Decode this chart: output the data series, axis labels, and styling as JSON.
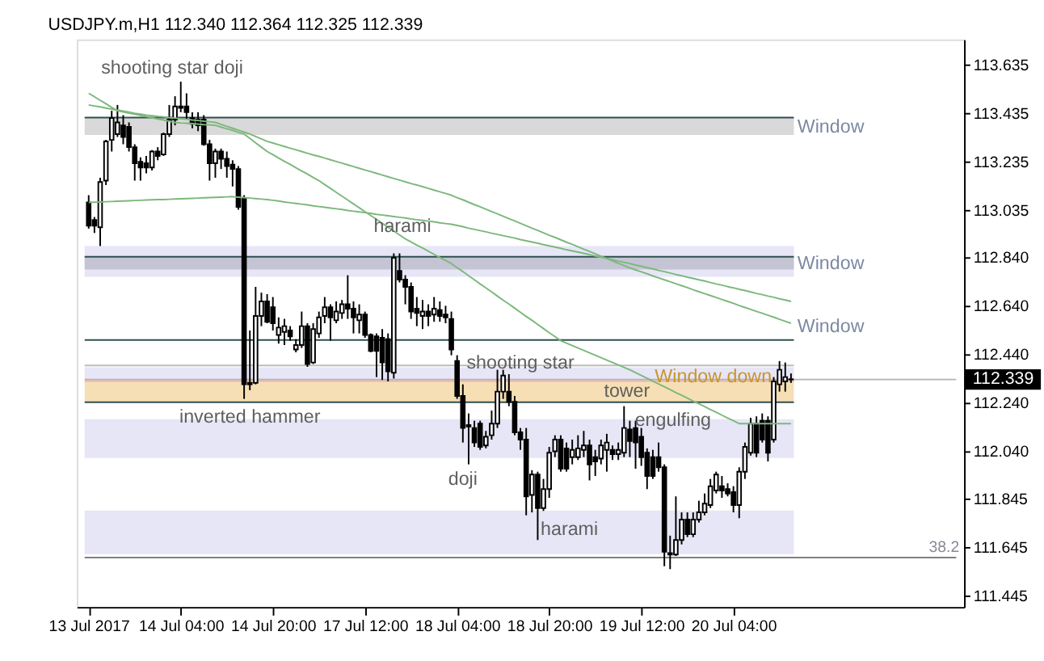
{
  "chart_data": {
    "type": "candlestick",
    "title": "USDJPY.m,H1  112.340 112.364 112.325 112.339",
    "categories": [
      "13 Jul 2017",
      null,
      null,
      null,
      null,
      null,
      null,
      null,
      null,
      null,
      null,
      null,
      null,
      null,
      null,
      null,
      "14 Jul 04:00",
      null,
      null,
      null,
      null,
      null,
      null,
      null,
      null,
      null,
      null,
      null,
      null,
      null,
      null,
      null,
      "14 Jul 20:00",
      null,
      null,
      null,
      null,
      null,
      null,
      null,
      null,
      null,
      null,
      null,
      null,
      null,
      null,
      null,
      "17 Jul 12:00",
      null,
      null,
      null,
      null,
      null,
      null,
      null,
      null,
      null,
      null,
      null,
      null,
      null,
      null,
      null,
      "18 Jul 04:00",
      null,
      null,
      null,
      null,
      null,
      null,
      null,
      null,
      null,
      null,
      null,
      null,
      null,
      null,
      null,
      "18 Jul 20:00",
      null,
      null,
      null,
      null,
      null,
      null,
      null,
      null,
      null,
      null,
      null,
      null,
      null,
      null,
      null,
      "19 Jul 12:00",
      null,
      null,
      null,
      null,
      null,
      null,
      null,
      null,
      null,
      null,
      null,
      null,
      null,
      null,
      null,
      "20 Jul 04:00",
      null,
      null,
      null,
      null,
      null,
      null,
      null,
      null,
      null,
      null,
      null,
      null,
      null,
      null,
      null,
      null,
      null,
      null,
      null,
      null,
      null,
      null,
      null,
      null,
      null,
      null,
      null,
      null,
      null,
      null,
      null,
      null,
      null,
      null,
      null,
      null,
      null,
      null
    ],
    "ohlc": [
      [
        113.069,
        113.099,
        112.961,
        112.973
      ],
      [
        112.997,
        113.009,
        112.943,
        112.973
      ],
      [
        112.967,
        113.171,
        112.889,
        113.153
      ],
      [
        113.159,
        113.327,
        113.141,
        113.321
      ],
      [
        113.327,
        113.447,
        113.279,
        113.417
      ],
      [
        113.351,
        113.471,
        113.339,
        113.399
      ],
      [
        113.387,
        113.429,
        113.309,
        113.339
      ],
      [
        113.381,
        113.399,
        113.279,
        113.297
      ],
      [
        113.297,
        113.309,
        113.159,
        113.231
      ],
      [
        113.237,
        113.255,
        113.159,
        113.213
      ],
      [
        113.231,
        113.261,
        113.189,
        113.213
      ],
      [
        113.213,
        113.285,
        113.201,
        113.279
      ],
      [
        113.279,
        113.297,
        113.243,
        113.261
      ],
      [
        113.267,
        113.357,
        113.261,
        113.351
      ],
      [
        113.351,
        113.471,
        113.339,
        113.411
      ],
      [
        113.411,
        113.507,
        113.387,
        113.465
      ],
      [
        113.465,
        113.567,
        113.441,
        113.459
      ],
      [
        113.465,
        113.519,
        113.411,
        113.441
      ],
      [
        113.417,
        113.441,
        113.375,
        113.393
      ],
      [
        113.411,
        113.441,
        113.363,
        113.387
      ],
      [
        113.411,
        113.429,
        113.303,
        113.309
      ],
      [
        113.309,
        113.327,
        113.159,
        113.231
      ],
      [
        113.231,
        113.291,
        113.171,
        113.279
      ],
      [
        113.279,
        113.291,
        113.207,
        113.249
      ],
      [
        113.249,
        113.279,
        113.171,
        113.219
      ],
      [
        113.225,
        113.243,
        113.135,
        113.207
      ],
      [
        113.207,
        113.219,
        113.039,
        113.051
      ],
      [
        113.087,
        113.099,
        112.259,
        112.319
      ],
      [
        112.319,
        112.541,
        112.295,
        112.325
      ],
      [
        112.325,
        112.721,
        112.319,
        112.601
      ],
      [
        112.601,
        112.697,
        112.559,
        112.661
      ],
      [
        112.661,
        112.691,
        112.571,
        112.577
      ],
      [
        112.637,
        112.679,
        112.541,
        112.571
      ],
      [
        112.523,
        112.595,
        112.487,
        112.553
      ],
      [
        112.535,
        112.589,
        112.481,
        112.559
      ],
      [
        112.541,
        112.559,
        112.499,
        112.517
      ],
      [
        112.463,
        112.505,
        112.451,
        112.481
      ],
      [
        112.481,
        112.619,
        112.469,
        112.559
      ],
      [
        112.559,
        112.571,
        112.391,
        112.403
      ],
      [
        112.409,
        112.571,
        112.403,
        112.547
      ],
      [
        112.529,
        112.619,
        112.511,
        112.595
      ],
      [
        112.601,
        112.679,
        112.571,
        112.637
      ],
      [
        112.637,
        112.649,
        112.499,
        112.595
      ],
      [
        112.583,
        112.661,
        112.571,
        112.619
      ],
      [
        112.613,
        112.667,
        112.589,
        112.649
      ],
      [
        112.649,
        112.769,
        112.589,
        112.631
      ],
      [
        112.631,
        112.661,
        112.529,
        112.595
      ],
      [
        112.583,
        112.649,
        112.529,
        112.607
      ],
      [
        112.607,
        112.619,
        112.511,
        112.523
      ],
      [
        112.523,
        112.529,
        112.451,
        112.457
      ],
      [
        112.517,
        112.529,
        112.349,
        112.457
      ],
      [
        112.511,
        112.547,
        112.337,
        112.409
      ],
      [
        112.505,
        112.529,
        112.331,
        112.373
      ],
      [
        112.367,
        112.859,
        112.343,
        112.841
      ],
      [
        112.787,
        112.859,
        112.739,
        112.751
      ],
      [
        112.751,
        112.769,
        112.649,
        112.721
      ],
      [
        112.721,
        112.739,
        112.589,
        112.619
      ],
      [
        112.631,
        112.679,
        112.559,
        112.613
      ],
      [
        112.601,
        112.667,
        112.547,
        112.619
      ],
      [
        112.619,
        112.649,
        112.559,
        112.601
      ],
      [
        112.607,
        112.679,
        112.577,
        112.631
      ],
      [
        112.625,
        112.661,
        112.577,
        112.601
      ],
      [
        112.607,
        112.643,
        112.571,
        112.595
      ],
      [
        112.589,
        112.619,
        112.439,
        112.463
      ],
      [
        112.415,
        112.439,
        112.259,
        112.271
      ],
      [
        112.271,
        112.319,
        112.079,
        112.139
      ],
      [
        112.145,
        112.199,
        111.989,
        112.151
      ],
      [
        112.139,
        112.169,
        112.061,
        112.079
      ],
      [
        112.157,
        112.169,
        112.049,
        112.061
      ],
      [
        112.067,
        112.127,
        112.055,
        112.103
      ],
      [
        112.109,
        112.211,
        112.091,
        112.157
      ],
      [
        112.157,
        112.379,
        112.139,
        112.289
      ],
      [
        112.289,
        112.379,
        112.259,
        112.355
      ],
      [
        112.289,
        112.361,
        112.229,
        112.247
      ],
      [
        112.247,
        112.271,
        112.109,
        112.121
      ],
      [
        112.121,
        112.139,
        112.049,
        112.091
      ],
      [
        112.091,
        112.139,
        111.779,
        111.857
      ],
      [
        111.863,
        111.965,
        111.791,
        111.947
      ],
      [
        111.947,
        111.959,
        111.677,
        111.809
      ],
      [
        111.809,
        111.929,
        111.797,
        111.887
      ],
      [
        111.887,
        112.061,
        111.851,
        112.037
      ],
      [
        112.043,
        112.109,
        112.019,
        112.091
      ],
      [
        112.091,
        112.109,
        111.959,
        111.971
      ],
      [
        112.055,
        112.079,
        111.959,
        111.971
      ],
      [
        112.019,
        112.091,
        111.989,
        112.049
      ],
      [
        112.019,
        112.109,
        112.007,
        112.055
      ],
      [
        112.049,
        112.127,
        112.019,
        112.067
      ],
      [
        112.067,
        112.091,
        111.923,
        111.989
      ],
      [
        112.019,
        112.049,
        111.941,
        112.001
      ],
      [
        112.013,
        112.091,
        111.989,
        112.067
      ],
      [
        112.049,
        112.115,
        111.959,
        112.079
      ],
      [
        112.049,
        112.067,
        112.007,
        112.031
      ],
      [
        112.031,
        112.079,
        112.007,
        112.049
      ],
      [
        112.037,
        112.229,
        112.019,
        112.139
      ],
      [
        112.133,
        112.169,
        112.019,
        112.085
      ],
      [
        112.139,
        112.169,
        111.971,
        112.079
      ],
      [
        112.103,
        112.139,
        111.983,
        112.019
      ],
      [
        112.037,
        112.055,
        111.887,
        111.941
      ],
      [
        112.019,
        112.049,
        111.929,
        111.941
      ],
      [
        112.019,
        112.079,
        111.959,
        111.977
      ],
      [
        111.977,
        111.989,
        111.569,
        111.629
      ],
      [
        111.617,
        111.695,
        111.557,
        111.623
      ],
      [
        111.617,
        111.857,
        111.611,
        111.677
      ],
      [
        111.677,
        111.791,
        111.659,
        111.761
      ],
      [
        111.761,
        111.791,
        111.689,
        111.701
      ],
      [
        111.701,
        111.791,
        111.689,
        111.761
      ],
      [
        111.761,
        111.839,
        111.749,
        111.791
      ],
      [
        111.791,
        111.869,
        111.779,
        111.827
      ],
      [
        111.821,
        111.929,
        111.809,
        111.899
      ],
      [
        111.881,
        111.959,
        111.869,
        111.947
      ],
      [
        111.899,
        111.941,
        111.851,
        111.881
      ],
      [
        111.887,
        111.911,
        111.857,
        111.869
      ],
      [
        111.875,
        111.899,
        111.791,
        111.821
      ],
      [
        111.821,
        111.977,
        111.767,
        111.959
      ],
      [
        111.959,
        112.079,
        111.929,
        112.061
      ],
      [
        112.037,
        112.181,
        112.025,
        112.157
      ],
      [
        112.157,
        112.187,
        112.019,
        112.037
      ],
      [
        112.169,
        112.199,
        112.079,
        112.091
      ],
      [
        112.169,
        112.187,
        112.001,
        112.037
      ],
      [
        112.091,
        112.349,
        112.079,
        112.331
      ],
      [
        112.319,
        112.415,
        112.289,
        112.379
      ],
      [
        112.331,
        112.409,
        112.289,
        112.349
      ],
      [
        112.34,
        112.364,
        112.325,
        112.339
      ],
      null,
      null,
      null,
      null,
      null,
      null,
      null,
      null,
      null,
      null,
      null,
      null,
      null,
      null,
      null,
      null,
      null,
      null,
      null,
      null,
      null,
      null,
      null,
      null,
      null,
      null,
      null,
      null
    ],
    "series": [
      {
        "type": "line",
        "color": "#7cb87c",
        "values": [
          113.519,
          113.505,
          113.49,
          113.476,
          113.461,
          113.447,
          113.442,
          113.437,
          113.433,
          113.428,
          113.423,
          113.418,
          113.413,
          113.409,
          113.404,
          113.399,
          113.397,
          113.396,
          113.394,
          113.392,
          113.39,
          113.389,
          113.387,
          113.38,
          113.373,
          113.366,
          113.358,
          113.351,
          113.333,
          113.315,
          113.297,
          113.279,
          113.266,
          113.252,
          113.239,
          113.226,
          113.212,
          113.199,
          113.186,
          113.172,
          113.159,
          113.143,
          113.127,
          113.111,
          113.095,
          113.079,
          113.063,
          113.047,
          113.031,
          113.015,
          112.999,
          112.983,
          112.967,
          112.951,
          112.935,
          112.919,
          112.906,
          112.893,
          112.881,
          112.868,
          112.855,
          112.842,
          112.83,
          112.817,
          112.8,
          112.784,
          112.767,
          112.75,
          112.733,
          112.717,
          112.7,
          112.683,
          112.666,
          112.65,
          112.633,
          112.616,
          112.599,
          112.583,
          112.566,
          112.549,
          112.532,
          112.516,
          112.499,
          112.489,
          112.479,
          112.469,
          112.459,
          112.449,
          112.439,
          112.429,
          112.419,
          112.409,
          112.399,
          112.389,
          112.379,
          112.367,
          112.356,
          112.344,
          112.332,
          112.321,
          112.309,
          112.297,
          112.285,
          112.274,
          112.262,
          112.25,
          112.239,
          112.227,
          112.215,
          112.204,
          112.192,
          112.18,
          112.169,
          112.157,
          112.157,
          112.157,
          112.157,
          112.157,
          112.157,
          112.157,
          112.157,
          112.157,
          112.157,
          null,
          null,
          null,
          null,
          null,
          null,
          null,
          null,
          null,
          null,
          null,
          null,
          null,
          null,
          null,
          null,
          null,
          null,
          null,
          null,
          null,
          null,
          null,
          null,
          null,
          null,
          null,
          null
        ]
      },
      {
        "type": "line",
        "color": "#7cb87c",
        "values": [
          113.471,
          113.467,
          113.463,
          113.458,
          113.454,
          113.45,
          113.446,
          113.442,
          113.437,
          113.433,
          113.429,
          113.427,
          113.424,
          113.422,
          113.419,
          113.417,
          113.414,
          113.412,
          113.409,
          113.407,
          113.404,
          113.402,
          113.399,
          113.391,
          113.383,
          113.375,
          113.367,
          113.359,
          113.351,
          113.341,
          113.331,
          113.321,
          113.314,
          113.307,
          113.3,
          113.293,
          113.286,
          113.279,
          113.272,
          113.265,
          113.259,
          113.252,
          113.245,
          113.238,
          113.231,
          113.224,
          113.217,
          113.21,
          113.203,
          113.196,
          113.189,
          113.182,
          113.175,
          113.168,
          113.161,
          113.154,
          113.147,
          113.141,
          113.134,
          113.127,
          113.12,
          113.113,
          113.106,
          113.099,
          113.089,
          113.08,
          113.07,
          113.06,
          113.051,
          113.041,
          113.031,
          113.022,
          113.012,
          113.002,
          112.993,
          112.983,
          112.973,
          112.963,
          112.954,
          112.944,
          112.934,
          112.925,
          112.915,
          112.905,
          112.896,
          112.886,
          112.876,
          112.867,
          112.857,
          112.847,
          112.838,
          112.828,
          112.818,
          112.809,
          112.799,
          112.791,
          112.783,
          112.775,
          112.766,
          112.758,
          112.75,
          112.742,
          112.734,
          112.726,
          112.718,
          112.709,
          112.701,
          112.693,
          112.685,
          112.677,
          112.669,
          112.661,
          112.653,
          112.644,
          112.636,
          112.628,
          112.62,
          112.612,
          112.604,
          112.596,
          112.587,
          112.579,
          112.571,
          null,
          null,
          null,
          null,
          null,
          null,
          null,
          null,
          null,
          null,
          null,
          null,
          null,
          null,
          null,
          null,
          null,
          null,
          null,
          null,
          null,
          null,
          null,
          null,
          null,
          null,
          null,
          null
        ]
      },
      {
        "type": "line",
        "color": "#7cb87c",
        "values": [
          113.069,
          113.07,
          113.071,
          113.072,
          113.073,
          113.074,
          113.075,
          113.076,
          113.077,
          113.078,
          113.079,
          113.08,
          113.081,
          113.081,
          113.082,
          113.083,
          113.084,
          113.085,
          113.086,
          113.087,
          113.088,
          113.089,
          113.09,
          113.091,
          113.092,
          113.093,
          113.091,
          113.089,
          113.087,
          113.085,
          113.083,
          113.081,
          113.078,
          113.075,
          113.071,
          113.068,
          113.065,
          113.062,
          113.059,
          113.055,
          113.052,
          113.049,
          113.046,
          113.043,
          113.04,
          113.036,
          113.033,
          113.03,
          113.027,
          113.024,
          113.02,
          113.017,
          113.014,
          113.011,
          113.008,
          113.005,
          113.001,
          112.998,
          112.995,
          112.992,
          112.989,
          112.985,
          112.982,
          112.979,
          112.974,
          112.969,
          112.963,
          112.958,
          112.953,
          112.948,
          112.942,
          112.937,
          112.932,
          112.927,
          112.922,
          112.916,
          112.911,
          112.906,
          112.901,
          112.895,
          112.89,
          112.885,
          112.88,
          112.874,
          112.869,
          112.864,
          112.859,
          112.854,
          112.848,
          112.843,
          112.838,
          112.833,
          112.827,
          112.822,
          112.817,
          112.811,
          112.806,
          112.8,
          112.795,
          112.789,
          112.784,
          112.778,
          112.772,
          112.767,
          112.761,
          112.756,
          112.75,
          112.745,
          112.739,
          112.733,
          112.728,
          112.722,
          112.717,
          112.711,
          112.706,
          112.7,
          112.694,
          112.689,
          112.683,
          112.678,
          112.672,
          112.667,
          112.661,
          null,
          null,
          null,
          null,
          null,
          null,
          null,
          null,
          null,
          null,
          null,
          null,
          null,
          null,
          null,
          null,
          null,
          null,
          null,
          null,
          null,
          null,
          null,
          null,
          null,
          null,
          null,
          null
        ]
      }
    ],
    "ylim": [
      111.401,
      113.741
    ],
    "yticks": [
      113.635,
      113.435,
      113.235,
      113.035,
      {
        "value": 112.84,
        "label": "112.840"
      },
      {
        "value": 112.64,
        "label": "112.640"
      },
      {
        "value": 112.44,
        "label": "112.440"
      },
      {
        "value": 112.24,
        "label": "112.240"
      },
      {
        "value": 112.04,
        "label": "112.040"
      },
      111.845,
      111.645,
      111.445
    ],
    "bands": [
      {
        "axis": "y",
        "from": 112.015,
        "to": 112.175,
        "color": "#e6e6f7"
      },
      {
        "axis": "y",
        "from": 111.619,
        "to": 111.799,
        "color": "#e6e6f7"
      },
      {
        "axis": "y",
        "from": 112.763,
        "to": 112.889,
        "color": "#e6e6f7"
      },
      {
        "axis": "y",
        "from": 112.323,
        "to": 112.389,
        "color": "#e6e6f7"
      },
      {
        "axis": "y",
        "from": 113.347,
        "to": 113.419,
        "color": "#d9d9d9",
        "label": "Window"
      },
      {
        "axis": "y",
        "from": 112.793,
        "to": 112.845,
        "color": "#c4c4d4",
        "label": "Window"
      },
      {
        "axis": "y",
        "from": 112.245,
        "to": 112.333,
        "color": "#f6dfb4"
      }
    ],
    "ref_lines": [
      {
        "axis": "y",
        "value": 113.419,
        "color": "#2f4f4f"
      },
      {
        "axis": "y",
        "value": 112.845,
        "color": "#2f4f4f"
      },
      {
        "axis": "y",
        "value": 112.502,
        "color": "#2f4f4f",
        "label": "Window"
      },
      {
        "axis": "y",
        "value": 112.245,
        "color": "#2f4f4f"
      },
      {
        "axis": "y",
        "value": 112.397,
        "color": "#bdbdbd"
      },
      {
        "axis": "y",
        "value": 112.333,
        "color": "#f0b4a8"
      },
      {
        "axis": "y",
        "value": 112.339,
        "color": "#b4b4b4",
        "label": "112.339"
      },
      {
        "axis": "y",
        "value": 111.605,
        "color": "#808080"
      }
    ],
    "annotations": [
      "shooting star doji",
      {
        "text": "harami",
        "y": 112.859
      },
      {
        "text": "inverted hammer",
        "y": 112.295
      },
      {
        "text": "shooting star",
        "y": 112.379
      },
      {
        "text": "tower",
        "y": 112.295
      },
      {
        "text": "Window down",
        "y": 112.355
      },
      {
        "text": "engulfing",
        "y": 112.175
      },
      {
        "text": "doji",
        "y": 111.989
      },
      "harami",
      "38.2"
    ]
  }
}
